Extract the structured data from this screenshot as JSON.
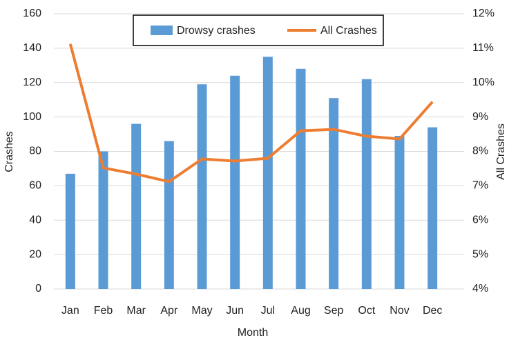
{
  "chart_data": {
    "type": "bar-line",
    "x_label": "Month",
    "y_label": "Crashes",
    "y2_label": "All Crashes",
    "categories": [
      "Jan",
      "Feb",
      "Mar",
      "Apr",
      "May",
      "Jun",
      "Jul",
      "Aug",
      "Sep",
      "Oct",
      "Nov",
      "Dec"
    ],
    "series": [
      {
        "name": "Drowsy crashes",
        "type": "bar",
        "color": "#5b9bd5",
        "values": [
          67,
          80,
          96,
          86,
          119,
          124,
          135,
          128,
          111,
          122,
          89,
          94
        ]
      },
      {
        "name": "All Crashes",
        "type": "line",
        "axis": "y2",
        "color": "#ed7d31",
        "values": [
          11.12,
          7.52,
          7.34,
          7.12,
          7.78,
          7.72,
          7.8,
          8.6,
          8.64,
          8.44,
          8.36,
          9.44
        ]
      }
    ],
    "ylim": [
      0,
      160
    ],
    "yticks": [
      0,
      20,
      40,
      60,
      80,
      100,
      120,
      140,
      160
    ],
    "y2lim": [
      4,
      12
    ],
    "y2ticks": [
      {
        "value": 4,
        "label": "4%"
      },
      {
        "value": 5,
        "label": "5%"
      },
      {
        "value": 6,
        "label": "6%"
      },
      {
        "value": 7,
        "label": "7%"
      },
      {
        "value": 8,
        "label": "8%"
      },
      {
        "value": 9,
        "label": "9%"
      },
      {
        "value": 10,
        "label": "10%"
      },
      {
        "value": 11,
        "label": "11%"
      },
      {
        "value": 12,
        "label": "12%"
      }
    ],
    "grid": true,
    "legend": "top"
  }
}
